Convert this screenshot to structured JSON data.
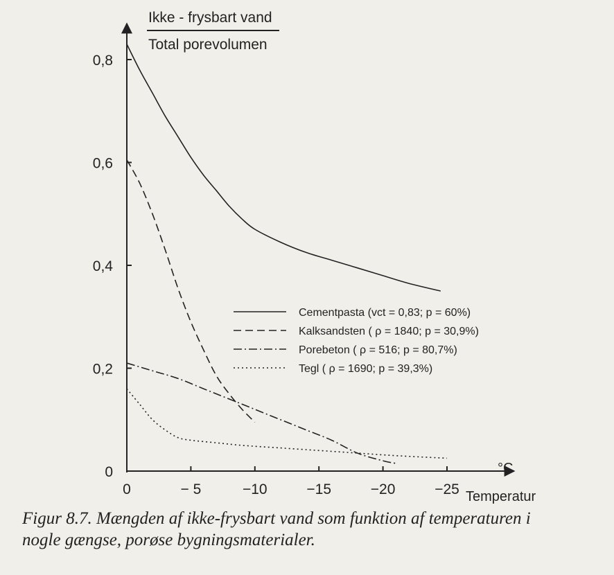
{
  "chart_data": {
    "type": "line",
    "ylabel_numerator": "Ikke - frysbart vand",
    "ylabel_denominator": "Total porevolumen",
    "xlabel": "Temperatur",
    "x_unit": "°C",
    "xlim": [
      0,
      -25
    ],
    "ylim": [
      0,
      0.8
    ],
    "x_ticks": [
      0,
      -5,
      -10,
      -15,
      -20,
      -25
    ],
    "x_tick_labels": [
      "0",
      "− 5",
      "−10",
      "−15",
      "−20",
      "−25"
    ],
    "y_ticks": [
      0,
      0.2,
      0.4,
      0.6,
      0.8
    ],
    "y_tick_labels": [
      "0",
      "0,2",
      "0,4",
      "0,6",
      "0,8"
    ],
    "grid": false,
    "legend_position": "right-center",
    "series": [
      {
        "name": "Cementpasta (vct = 0,83;  p = 60%)",
        "style": "solid",
        "x": [
          0,
          -1,
          -2,
          -3,
          -4,
          -5,
          -6,
          -7,
          -8,
          -9,
          -10,
          -12,
          -14,
          -16,
          -18,
          -20,
          -22,
          -24.5
        ],
        "y": [
          0.83,
          0.78,
          0.735,
          0.69,
          0.65,
          0.61,
          0.575,
          0.545,
          0.515,
          0.49,
          0.47,
          0.445,
          0.425,
          0.41,
          0.395,
          0.38,
          0.365,
          0.35
        ]
      },
      {
        "name": "Kalksandsten ( ρ = 1840;  p = 30,9%)",
        "style": "dashed",
        "x": [
          0,
          -1,
          -2,
          -3,
          -4,
          -5,
          -6,
          -7,
          -8,
          -9,
          -10
        ],
        "y": [
          0.605,
          0.56,
          0.5,
          0.43,
          0.355,
          0.29,
          0.235,
          0.185,
          0.15,
          0.12,
          0.095
        ]
      },
      {
        "name": "Porebeton ( ρ = 516; p = 80,7%)",
        "style": "dashdot",
        "x": [
          0,
          -2,
          -4,
          -6,
          -8,
          -10,
          -12,
          -14,
          -16,
          -18,
          -20,
          -21
        ],
        "y": [
          0.21,
          0.195,
          0.18,
          0.16,
          0.14,
          0.12,
          0.1,
          0.08,
          0.06,
          0.035,
          0.02,
          0.015
        ]
      },
      {
        "name": "Tegl ( ρ = 1690;  p = 39,3%)",
        "style": "dotted",
        "x": [
          0,
          -1,
          -2,
          -3,
          -4,
          -5,
          -7,
          -9,
          -12,
          -15,
          -18,
          -21,
          -25
        ],
        "y": [
          0.16,
          0.13,
          0.1,
          0.08,
          0.065,
          0.06,
          0.055,
          0.05,
          0.045,
          0.04,
          0.035,
          0.03,
          0.025
        ]
      }
    ]
  },
  "caption": {
    "line1": "Figur 8.7. Mængden af ikke-frysbart vand som funktion af temperaturen i",
    "line2": "nogle gængse, porøse bygningsmaterialer."
  }
}
